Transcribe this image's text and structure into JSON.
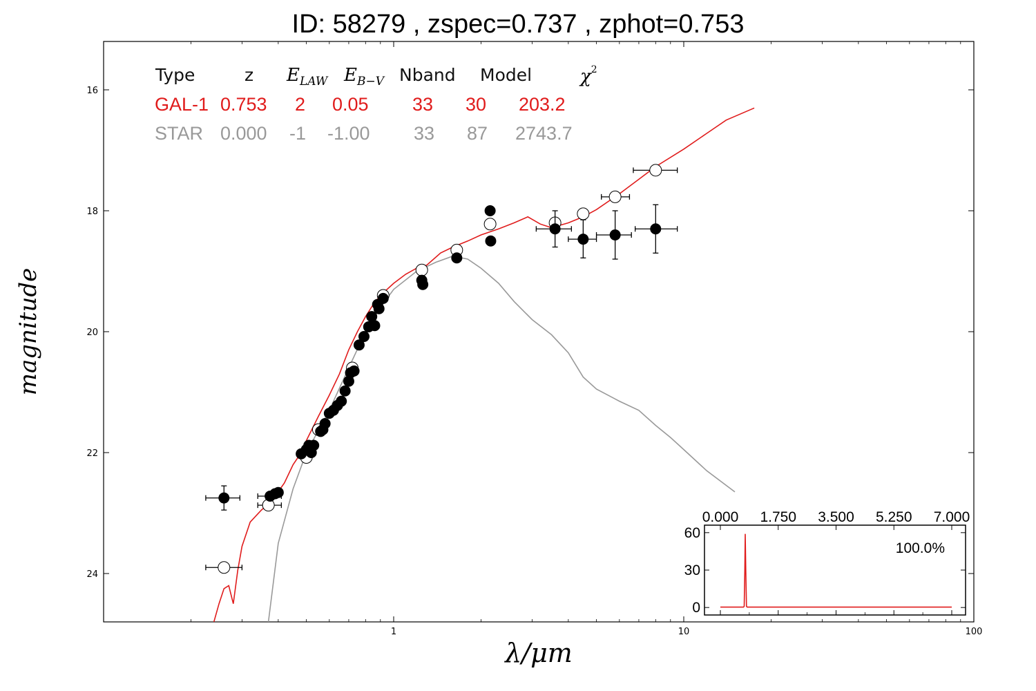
{
  "title": "ID:  58279 , zspec=0.737 , zphot=0.753",
  "colors": {
    "galaxy": "#e01b1b",
    "star": "#999999",
    "points": "#000000"
  },
  "table": {
    "headers": [
      "Type",
      "z",
      "E",
      "LAW",
      "E",
      "B−V",
      "Nband",
      "Model",
      "χ",
      "2"
    ],
    "rows": [
      {
        "name": "galaxy",
        "color": "#e01b1b",
        "cells": [
          "GAL-1",
          "0.753",
          "2",
          "0.05",
          "33",
          "30",
          "203.2"
        ]
      },
      {
        "name": "star",
        "color": "#999999",
        "cells": [
          "STAR",
          "0.000",
          "-1",
          "-1.00",
          "33",
          "87",
          "2743.7"
        ]
      }
    ]
  },
  "chart_data": [
    {
      "type": "scatter",
      "xlabel": "λ/μm",
      "ylabel": "magnitude",
      "xscale": "log",
      "xlim": [
        0.1,
        100
      ],
      "ylim": [
        24.8,
        15.2
      ],
      "y_inverted": true,
      "x_ticks": [
        1,
        10,
        100
      ],
      "x_tick_labels": [
        "1",
        "10",
        "100"
      ],
      "y_ticks": [
        16,
        18,
        20,
        22,
        24
      ],
      "y_tick_labels": [
        "16",
        "18",
        "20",
        "22",
        "24"
      ],
      "grid": false,
      "galaxy_model": [
        [
          0.24,
          24.8
        ],
        [
          0.25,
          24.5
        ],
        [
          0.26,
          24.25
        ],
        [
          0.27,
          24.2
        ],
        [
          0.28,
          24.5
        ],
        [
          0.29,
          23.95
        ],
        [
          0.3,
          23.55
        ],
        [
          0.32,
          23.15
        ],
        [
          0.35,
          22.95
        ],
        [
          0.38,
          22.8
        ],
        [
          0.42,
          22.5
        ],
        [
          0.45,
          22.2
        ],
        [
          0.48,
          22.0
        ],
        [
          0.5,
          21.8
        ],
        [
          0.55,
          21.4
        ],
        [
          0.6,
          21.05
        ],
        [
          0.65,
          20.7
        ],
        [
          0.7,
          20.3
        ],
        [
          0.75,
          20.0
        ],
        [
          0.8,
          19.75
        ],
        [
          0.85,
          19.55
        ],
        [
          0.9,
          19.4
        ],
        [
          1.0,
          19.2
        ],
        [
          1.1,
          19.05
        ],
        [
          1.2,
          18.95
        ],
        [
          1.3,
          18.9
        ],
        [
          1.45,
          18.7
        ],
        [
          1.6,
          18.6
        ],
        [
          1.8,
          18.5
        ],
        [
          2.0,
          18.4
        ],
        [
          2.3,
          18.3
        ],
        [
          2.6,
          18.2
        ],
        [
          2.9,
          18.1
        ],
        [
          3.2,
          18.22
        ],
        [
          3.5,
          18.28
        ],
        [
          4.0,
          18.2
        ],
        [
          4.5,
          18.1
        ],
        [
          5.0,
          17.98
        ],
        [
          6.0,
          17.72
        ],
        [
          7.0,
          17.48
        ],
        [
          8.0,
          17.27
        ],
        [
          10,
          16.98
        ],
        [
          12,
          16.72
        ],
        [
          14,
          16.5
        ],
        [
          17.5,
          16.3
        ]
      ],
      "star_model": [
        [
          0.37,
          24.8
        ],
        [
          0.4,
          23.5
        ],
        [
          0.45,
          22.6
        ],
        [
          0.5,
          22.0
        ],
        [
          0.6,
          21.3
        ],
        [
          0.7,
          20.6
        ],
        [
          0.8,
          20.0
        ],
        [
          0.9,
          19.6
        ],
        [
          1.0,
          19.3
        ],
        [
          1.2,
          19.0
        ],
        [
          1.4,
          18.85
        ],
        [
          1.6,
          18.75
        ],
        [
          1.8,
          18.8
        ],
        [
          2.0,
          18.95
        ],
        [
          2.3,
          19.2
        ],
        [
          2.6,
          19.5
        ],
        [
          3.0,
          19.8
        ],
        [
          3.5,
          20.05
        ],
        [
          4.0,
          20.35
        ],
        [
          4.5,
          20.75
        ],
        [
          5.0,
          20.95
        ],
        [
          6.0,
          21.15
        ],
        [
          7.0,
          21.3
        ],
        [
          8.0,
          21.55
        ],
        [
          9.0,
          21.75
        ],
        [
          10,
          21.95
        ],
        [
          12,
          22.3
        ],
        [
          15,
          22.65
        ]
      ],
      "observed": [
        {
          "x": 0.26,
          "y": 22.75,
          "xerr": [
            0.225,
            0.295
          ],
          "yerr": [
            22.55,
            22.95
          ]
        },
        {
          "x": 0.375,
          "y": 22.72,
          "xerr": [
            0.34,
            0.41
          ]
        },
        {
          "x": 0.39,
          "y": 22.68
        },
        {
          "x": 0.4,
          "y": 22.66
        },
        {
          "x": 0.48,
          "y": 22.02
        },
        {
          "x": 0.5,
          "y": 21.95
        },
        {
          "x": 0.51,
          "y": 21.88
        },
        {
          "x": 0.52,
          "y": 22.0
        },
        {
          "x": 0.53,
          "y": 21.88
        },
        {
          "x": 0.56,
          "y": 21.65
        },
        {
          "x": 0.57,
          "y": 21.62
        },
        {
          "x": 0.58,
          "y": 21.52
        },
        {
          "x": 0.6,
          "y": 21.35
        },
        {
          "x": 0.62,
          "y": 21.3
        },
        {
          "x": 0.64,
          "y": 21.22
        },
        {
          "x": 0.66,
          "y": 21.15
        },
        {
          "x": 0.68,
          "y": 20.98
        },
        {
          "x": 0.7,
          "y": 20.82
        },
        {
          "x": 0.71,
          "y": 20.68
        },
        {
          "x": 0.73,
          "y": 20.65
        },
        {
          "x": 0.76,
          "y": 20.22
        },
        {
          "x": 0.79,
          "y": 20.08
        },
        {
          "x": 0.82,
          "y": 19.92
        },
        {
          "x": 0.84,
          "y": 19.75
        },
        {
          "x": 0.86,
          "y": 19.9
        },
        {
          "x": 0.88,
          "y": 19.55
        },
        {
          "x": 0.89,
          "y": 19.62
        },
        {
          "x": 0.92,
          "y": 19.45
        },
        {
          "x": 1.25,
          "y": 19.15
        },
        {
          "x": 1.26,
          "y": 19.22
        },
        {
          "x": 1.65,
          "y": 18.78
        },
        {
          "x": 2.15,
          "y": 18.0
        },
        {
          "x": 2.16,
          "y": 18.5
        },
        {
          "x": 3.6,
          "y": 18.3,
          "xerr": [
            3.1,
            4.1
          ],
          "yerr": [
            18.0,
            18.6
          ]
        },
        {
          "x": 4.5,
          "y": 18.47,
          "xerr": [
            4.0,
            5.0
          ],
          "yerr": [
            18.15,
            18.78
          ]
        },
        {
          "x": 5.8,
          "y": 18.4,
          "xerr": [
            5.0,
            6.6
          ],
          "yerr": [
            18.0,
            18.8
          ]
        },
        {
          "x": 8.0,
          "y": 18.3,
          "xerr": [
            6.8,
            9.5
          ],
          "yerr": [
            17.9,
            18.7
          ]
        }
      ],
      "model_points": [
        {
          "x": 0.26,
          "y": 23.9,
          "xerr": [
            0.225,
            0.3
          ]
        },
        {
          "x": 0.37,
          "y": 22.87,
          "xerr": [
            0.34,
            0.41
          ]
        },
        {
          "x": 0.5,
          "y": 22.08
        },
        {
          "x": 0.55,
          "y": 21.62
        },
        {
          "x": 0.72,
          "y": 20.6
        },
        {
          "x": 0.92,
          "y": 19.4
        },
        {
          "x": 1.25,
          "y": 18.98
        },
        {
          "x": 1.65,
          "y": 18.65
        },
        {
          "x": 2.15,
          "y": 18.22
        },
        {
          "x": 3.6,
          "y": 18.2
        },
        {
          "x": 4.5,
          "y": 18.05
        },
        {
          "x": 5.8,
          "y": 17.77,
          "xerr": [
            5.2,
            6.5
          ]
        },
        {
          "x": 8.0,
          "y": 17.33,
          "xerr": [
            6.7,
            9.5
          ]
        }
      ]
    },
    {
      "type": "line",
      "x_ticks": [
        0.0,
        1.75,
        3.5,
        5.25,
        7.0
      ],
      "x_tick_labels": [
        "0.000",
        "1.750",
        "3.500",
        "5.250",
        "7.000"
      ],
      "xlim": [
        0,
        7
      ],
      "y_ticks": [
        0,
        30,
        60
      ],
      "y_tick_labels": [
        "0",
        "30",
        "60"
      ],
      "ylim": [
        -6,
        66
      ],
      "annotation": "100.0%",
      "series": [
        {
          "values": [
            [
              0.0,
              0.3
            ],
            [
              0.7,
              0.3
            ],
            [
              0.72,
              1
            ],
            [
              0.74,
              30
            ],
            [
              0.753,
              59
            ],
            [
              0.77,
              30
            ],
            [
              0.79,
              1
            ],
            [
              0.81,
              0.3
            ],
            [
              7.0,
              0.3
            ]
          ]
        }
      ]
    }
  ]
}
